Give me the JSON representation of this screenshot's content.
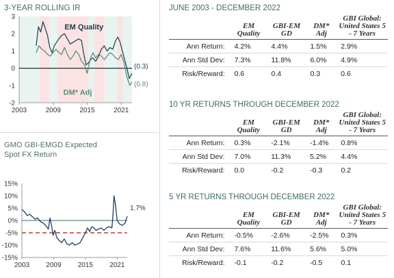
{
  "chart_data": [
    {
      "type": "line",
      "title": "3-YEAR ROLLING IR",
      "x_ticks": [
        "2003",
        "2009",
        "2015",
        "2021"
      ],
      "y_ticks": [
        "3",
        "2",
        "1",
        "0",
        "-1",
        "-2"
      ],
      "ylim": [
        -2,
        3
      ],
      "xlim": [
        2003,
        2022.9
      ],
      "series": [
        {
          "name": "EM Quality",
          "color": "#1e4a5a",
          "end_label": "(0.3)",
          "x": [
            2006.0,
            2006.4,
            2006.8,
            2007.2,
            2007.6,
            2008.0,
            2008.4,
            2008.8,
            2009.2,
            2009.6,
            2010.0,
            2010.5,
            2011.0,
            2011.5,
            2012.0,
            2012.5,
            2013.0,
            2013.5,
            2014.0,
            2014.4,
            2014.8,
            2015.2,
            2015.6,
            2016.0,
            2016.5,
            2017.0,
            2017.5,
            2018.0,
            2018.5,
            2019.0,
            2019.5,
            2020.0,
            2020.4,
            2020.8,
            2021.2,
            2021.6,
            2022.0,
            2022.4,
            2022.9
          ],
          "y": [
            1.3,
            2.4,
            2.1,
            2.7,
            2.3,
            1.9,
            1.2,
            0.9,
            1.3,
            1.5,
            1.7,
            1.9,
            2.0,
            1.7,
            1.4,
            1.5,
            1.6,
            1.7,
            1.6,
            0.8,
            0.2,
            0.3,
            0.5,
            0.6,
            0.4,
            0.7,
            1.1,
            1.3,
            1.0,
            1.2,
            1.1,
            1.6,
            1.8,
            1.5,
            1.0,
            0.5,
            0.0,
            -0.6,
            -0.3
          ]
        },
        {
          "name": "DM* Adj",
          "color": "#5f8a7e",
          "end_label": "(0.8)",
          "x": [
            2006.0,
            2006.5,
            2007.0,
            2007.5,
            2008.0,
            2008.5,
            2009.0,
            2009.5,
            2010.0,
            2010.5,
            2011.0,
            2011.5,
            2012.0,
            2012.5,
            2013.0,
            2013.5,
            2014.0,
            2014.5,
            2015.0,
            2015.5,
            2016.0,
            2016.5,
            2017.0,
            2017.5,
            2018.0,
            2018.5,
            2019.0,
            2019.5,
            2020.0,
            2020.5,
            2021.0,
            2021.5,
            2022.0,
            2022.5,
            2022.9
          ],
          "y": [
            0.9,
            1.3,
            1.1,
            1.0,
            0.8,
            0.7,
            0.9,
            1.1,
            0.9,
            0.8,
            1.2,
            0.8,
            0.5,
            0.7,
            1.0,
            0.8,
            0.4,
            0.2,
            -0.3,
            0.5,
            0.9,
            0.6,
            0.8,
            0.7,
            0.5,
            0.7,
            0.9,
            0.8,
            0.6,
            0.5,
            0.8,
            0.3,
            -0.5,
            -1.0,
            -0.8
          ]
        }
      ],
      "annotations": [
        "EM Quality",
        "DM* Adj"
      ],
      "shaded_periods": [
        {
          "from": 2003.0,
          "to": 2006.6,
          "color": "#e9f3ef"
        },
        {
          "from": 2006.6,
          "to": 2008.3,
          "color": "#fbe3e3"
        },
        {
          "from": 2008.3,
          "to": 2009.8,
          "color": "#e9f3ef"
        },
        {
          "from": 2009.8,
          "to": 2015.2,
          "color": "#fbe3e3"
        },
        {
          "from": 2015.2,
          "to": 2016.3,
          "color": "#e9f3ef"
        },
        {
          "from": 2016.3,
          "to": 2018.1,
          "color": "#fbe3e3"
        },
        {
          "from": 2018.1,
          "to": 2020.3,
          "color": "#e9f3ef"
        },
        {
          "from": 2020.3,
          "to": 2021.3,
          "color": "#fbe3e3"
        },
        {
          "from": 2021.3,
          "to": 2022.9,
          "color": "#e9f3ef"
        }
      ]
    },
    {
      "type": "line",
      "title": "GMO GBI-EMGD Expected Spot FX Return",
      "x_ticks": [
        "2003",
        "2009",
        "2015",
        "2021"
      ],
      "y_ticks": [
        "15%",
        "10%",
        "5%",
        "0%",
        "-5%",
        "-10%",
        "-15%"
      ],
      "ylim": [
        -15,
        15
      ],
      "xlim": [
        2003,
        2022.9
      ],
      "end_label": "1.7%",
      "reference_line": -5,
      "series": [
        {
          "color": "#1e3a5f",
          "x": [
            2003.0,
            2003.5,
            2004.0,
            2004.5,
            2005.0,
            2005.5,
            2006.0,
            2006.5,
            2007.0,
            2007.5,
            2008.0,
            2008.3,
            2008.6,
            2008.9,
            2009.2,
            2009.6,
            2010.0,
            2010.5,
            2011.0,
            2011.5,
            2012.0,
            2012.5,
            2013.0,
            2013.5,
            2014.0,
            2014.5,
            2015.0,
            2015.4,
            2015.8,
            2016.2,
            2016.6,
            2017.0,
            2017.5,
            2018.0,
            2018.5,
            2019.0,
            2019.5,
            2020.0,
            2020.2,
            2020.4,
            2020.7,
            2021.0,
            2021.5,
            2022.0,
            2022.5,
            2022.9
          ],
          "y": [
            4.5,
            3.5,
            2.0,
            2.5,
            1.5,
            0.5,
            1.0,
            -0.5,
            -1.0,
            -2.0,
            -3.5,
            1.0,
            -2.0,
            -6.0,
            -4.0,
            -7.0,
            -8.0,
            -9.0,
            -7.5,
            -9.5,
            -10.0,
            -9.0,
            -10.0,
            -9.5,
            -9.0,
            -7.0,
            -5.0,
            -3.0,
            -4.5,
            -2.5,
            -3.0,
            -4.0,
            -3.5,
            -3.0,
            -4.0,
            -3.0,
            -2.5,
            -3.0,
            2.0,
            10.0,
            6.0,
            0.0,
            -1.5,
            -2.0,
            -1.0,
            1.7
          ]
        }
      ]
    }
  ],
  "tables": [
    {
      "title": "JUNE 2003 - DECEMBER 2022",
      "headers": [
        "EM Quality",
        "GBI-EM GD",
        "DM* Adj",
        "GBI Global: United States 5 - 7 Years"
      ],
      "rows": [
        {
          "label": "Ann Return:",
          "values": [
            "4.2%",
            "4.4%",
            "1.5%",
            "2.9%"
          ]
        },
        {
          "label": "Ann Std Dev:",
          "values": [
            "7.3%",
            "11.8%",
            "6.0%",
            "4.9%"
          ]
        },
        {
          "label": "Risk/Reward:",
          "values": [
            "0.6",
            "0.4",
            "0.3",
            "0.6"
          ]
        }
      ]
    },
    {
      "title": "10 YR RETURNS THROUGH DECEMBER 2022",
      "headers": [
        "EM Quality",
        "GBI-EM GD",
        "DM* Adj",
        "GBI Global: United States 5 - 7 Years"
      ],
      "rows": [
        {
          "label": "Ann Return:",
          "values": [
            "0.3%",
            "-2.1%",
            "-1.4%",
            "0.8%"
          ]
        },
        {
          "label": "Ann Std Dev:",
          "values": [
            "7.0%",
            "11.3%",
            "5.2%",
            "4.4%"
          ]
        },
        {
          "label": "Risk/Reward:",
          "values": [
            "0.0",
            "-0.2",
            "-0.3",
            "0.2"
          ]
        }
      ]
    },
    {
      "title": "5 YR RETURNS THROUGH DECEMBER 2022",
      "headers": [
        "EM Quality",
        "GBI-EM GD",
        "DM* Adj",
        "GBI Global: United States 5 - 7 Years"
      ],
      "rows": [
        {
          "label": "Ann Return:",
          "values": [
            "-0.5%",
            "-2.6%",
            "-2.5%",
            "0.3%"
          ]
        },
        {
          "label": "Ann Std Dev:",
          "values": [
            "7.6%",
            "11.6%",
            "5.6%",
            "5.0%"
          ]
        },
        {
          "label": "Risk/Reward:",
          "values": [
            "-0.1",
            "-0.2",
            "-0.5",
            "0.1"
          ]
        }
      ]
    }
  ]
}
